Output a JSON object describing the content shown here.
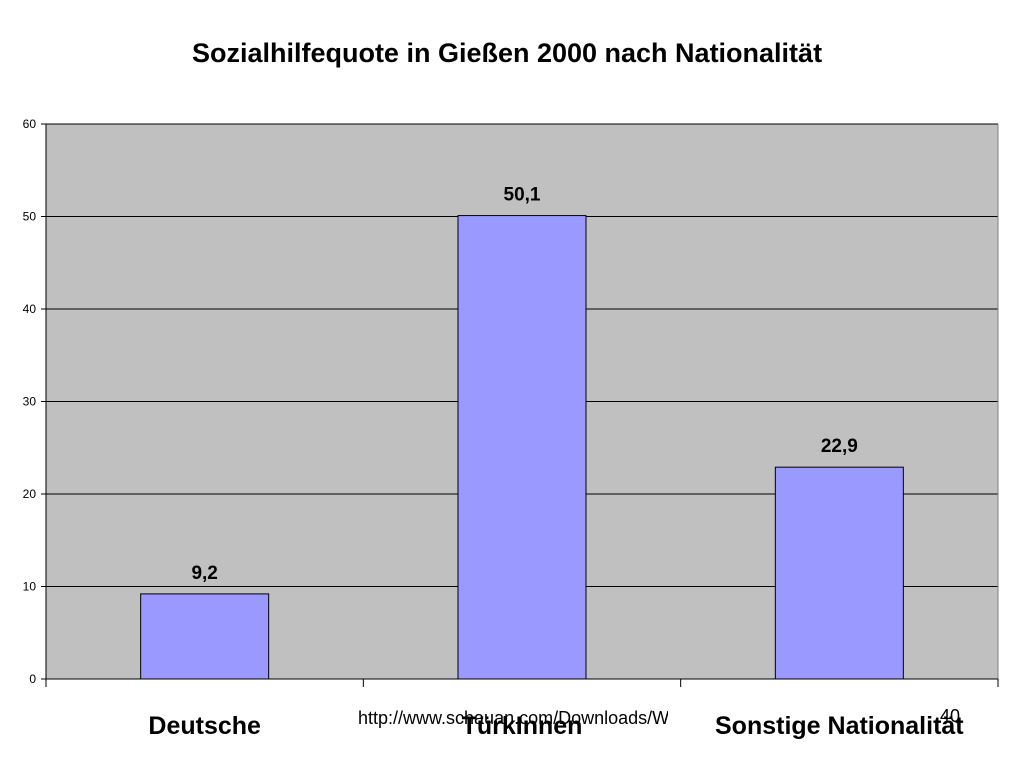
{
  "slide": {
    "source_note": "http://www.schauan.com/Downloads/Wissenschaft/Armut_durch_Erwerbslosigkeit.ppt",
    "slide_number": "40"
  },
  "chart_data": {
    "type": "bar",
    "title": "Sozialhilfequote in Gießen 2000 nach Nationalität",
    "xlabel": "",
    "ylabel": "",
    "categories": [
      "Deutsche",
      "TürkInnen",
      "Sonstige Nationalität"
    ],
    "values": [
      9.2,
      50.1,
      22.9
    ],
    "data_labels": [
      "9,2",
      "50,1",
      "22,9"
    ],
    "ylim": [
      0,
      60
    ],
    "yticks": [
      0,
      10,
      20,
      30,
      40,
      50,
      60
    ],
    "grid": true,
    "legend": "none",
    "colors": {
      "bar_fill": "#9999ff",
      "bar_stroke": "#000000",
      "plot_background": "#c0c0c0",
      "gridline": "#000000"
    }
  }
}
